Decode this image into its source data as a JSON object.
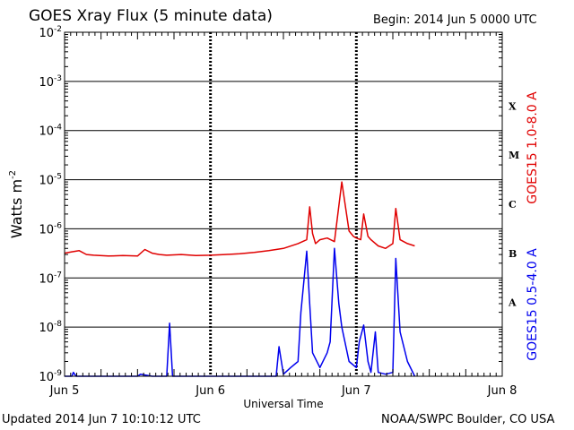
{
  "header": {
    "title": "GOES Xray Flux (5 minute data)",
    "begin": "Begin:  2014 Jun 5 0000 UTC"
  },
  "footer": {
    "updated": "Updated 2014 Jun  7 10:10:12 UTC",
    "credit": "NOAA/SWPC Boulder, CO USA"
  },
  "chart_data": {
    "type": "line",
    "title": "GOES Xray Flux (5 minute data)",
    "xlabel": "Universal Time",
    "ylabel": "Watts m",
    "ylabel_sup": "-2",
    "yscale": "log",
    "ylim": [
      1e-09,
      0.01
    ],
    "xlim": [
      0,
      3
    ],
    "x_ticks": [
      {
        "value": 0,
        "label": "Jun 5"
      },
      {
        "value": 1,
        "label": "Jun 6"
      },
      {
        "value": 2,
        "label": "Jun 7"
      },
      {
        "value": 3,
        "label": "Jun 8"
      }
    ],
    "y_ticks": [
      {
        "exp": -9,
        "base": "10",
        "sup": "-9"
      },
      {
        "exp": -8,
        "base": "10",
        "sup": "-8"
      },
      {
        "exp": -7,
        "base": "10",
        "sup": "-7"
      },
      {
        "exp": -6,
        "base": "10",
        "sup": "-6"
      },
      {
        "exp": -5,
        "base": "10",
        "sup": "-5"
      },
      {
        "exp": -4,
        "base": "10",
        "sup": "-4"
      },
      {
        "exp": -3,
        "base": "10",
        "sup": "-3"
      },
      {
        "exp": -2,
        "base": "10",
        "sup": "-2"
      }
    ],
    "flare_classes": [
      {
        "label": "A",
        "exp": -7.5
      },
      {
        "label": "B",
        "exp": -6.5
      },
      {
        "label": "C",
        "exp": -5.5
      },
      {
        "label": "M",
        "exp": -4.5
      },
      {
        "label": "X",
        "exp": -3.5
      }
    ],
    "grid": true,
    "series": [
      {
        "name": "GOES15 1.0-8.0 A",
        "color": "#e00000",
        "x": [
          0,
          0.05,
          0.1,
          0.15,
          0.2,
          0.3,
          0.4,
          0.5,
          0.55,
          0.6,
          0.65,
          0.7,
          0.8,
          0.9,
          1.0,
          1.1,
          1.2,
          1.3,
          1.4,
          1.5,
          1.6,
          1.66,
          1.68,
          1.7,
          1.72,
          1.75,
          1.8,
          1.85,
          1.9,
          1.95,
          1.98,
          2.0,
          2.03,
          2.05,
          2.08,
          2.1,
          2.15,
          2.2,
          2.25,
          2.27,
          2.3,
          2.35,
          2.4
        ],
        "y": [
          3.2e-07,
          3.4e-07,
          3.6e-07,
          3e-07,
          2.9e-07,
          2.8e-07,
          2.85e-07,
          2.8e-07,
          3.8e-07,
          3.2e-07,
          3e-07,
          2.9e-07,
          3e-07,
          2.85e-07,
          2.9e-07,
          3e-07,
          3.1e-07,
          3.3e-07,
          3.6e-07,
          4e-07,
          5e-07,
          6e-07,
          2.8e-06,
          8e-07,
          5e-07,
          6e-07,
          6.5e-07,
          5.5e-07,
          9e-06,
          9e-07,
          7e-07,
          6.5e-07,
          6e-07,
          2e-06,
          7e-07,
          6e-07,
          4.5e-07,
          4e-07,
          5e-07,
          2.6e-06,
          6e-07,
          5e-07,
          4.5e-07
        ]
      },
      {
        "name": "GOES15 0.5-4.0 A",
        "color": "#0000ee",
        "x": [
          0,
          0.05,
          0.06,
          0.08,
          0.1,
          0.5,
          0.52,
          0.6,
          0.7,
          0.72,
          0.74,
          0.8,
          1.0,
          1.2,
          1.3,
          1.4,
          1.45,
          1.47,
          1.5,
          1.55,
          1.6,
          1.62,
          1.66,
          1.68,
          1.7,
          1.75,
          1.8,
          1.82,
          1.85,
          1.88,
          1.9,
          1.95,
          2.0,
          2.02,
          2.05,
          2.08,
          2.1,
          2.13,
          2.15,
          2.2,
          2.25,
          2.27,
          2.3,
          2.35,
          2.4
        ],
        "y": [
          1e-09,
          1e-09,
          1.2e-09,
          1e-09,
          1e-09,
          1e-09,
          1.1e-09,
          1e-09,
          1e-09,
          1.2e-08,
          1e-09,
          1e-09,
          1e-09,
          1e-09,
          1e-09,
          1e-09,
          1e-09,
          4e-09,
          1.1e-09,
          1.5e-09,
          2e-09,
          2e-08,
          3.5e-07,
          3e-08,
          3e-09,
          1.5e-09,
          3e-09,
          5e-09,
          4e-07,
          3e-08,
          1e-08,
          2e-09,
          1.5e-09,
          5e-09,
          1.1e-08,
          2e-09,
          1.2e-09,
          8e-09,
          1.2e-09,
          1.1e-09,
          1.2e-09,
          2.5e-07,
          8e-09,
          2e-09,
          1e-09
        ]
      }
    ]
  }
}
